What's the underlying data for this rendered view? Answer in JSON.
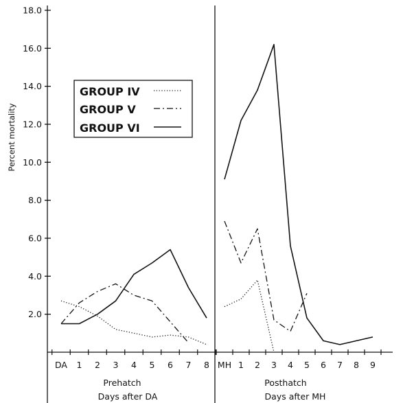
{
  "chart_data": {
    "type": "line",
    "y_axis": {
      "label": "Percent mortality",
      "range": [
        0,
        18
      ],
      "ticks": [
        2,
        4,
        6,
        8,
        10,
        12,
        14,
        16,
        18
      ],
      "tick_labels": [
        "2.0",
        "4.0",
        "6.0",
        "8.0",
        "10.0",
        "12.0",
        "14.0",
        "16.0",
        "18.0"
      ]
    },
    "legend": {
      "placement": "upper-left",
      "entries": [
        {
          "label": "GROUP IV",
          "style": "dotted"
        },
        {
          "label": "GROUP V",
          "style": "dash-dot"
        },
        {
          "label": "GROUP VI",
          "style": "solid"
        }
      ]
    },
    "panels": [
      {
        "name": "prehatch",
        "title": "Prehatch",
        "xlabel": "Days after DA",
        "categories": [
          "DA",
          "1",
          "2",
          "3",
          "4",
          "5",
          "6",
          "7",
          "8"
        ],
        "series": [
          {
            "name": "GROUP IV",
            "style": "dotted",
            "values": [
              2.7,
              2.4,
              1.9,
              1.2,
              1.0,
              0.8,
              0.9,
              0.8,
              0.4
            ]
          },
          {
            "name": "GROUP V",
            "style": "dash-dot",
            "values": [
              1.5,
              2.6,
              3.2,
              3.6,
              3.0,
              2.7,
              1.6,
              0.5,
              null
            ]
          },
          {
            "name": "GROUP VI",
            "style": "solid",
            "values": [
              1.5,
              1.5,
              2.0,
              2.7,
              4.1,
              4.7,
              5.4,
              3.4,
              1.8
            ]
          }
        ]
      },
      {
        "name": "posthatch",
        "title": "Posthatch",
        "xlabel": "Days after MH",
        "categories": [
          "MH",
          "1",
          "2",
          "3",
          "4",
          "5",
          "6",
          "7",
          "8",
          "9"
        ],
        "series": [
          {
            "name": "GROUP IV",
            "style": "dotted",
            "values": [
              2.4,
              2.8,
              3.8,
              0.0,
              null,
              null,
              null,
              null,
              null,
              null
            ]
          },
          {
            "name": "GROUP V",
            "style": "dash-dot",
            "values": [
              6.9,
              4.7,
              6.5,
              1.7,
              1.1,
              3.1,
              null,
              null,
              null,
              null
            ]
          },
          {
            "name": "GROUP VI",
            "style": "solid",
            "values": [
              9.1,
              12.2,
              13.8,
              16.2,
              5.6,
              1.8,
              0.6,
              0.4,
              0.6,
              0.8
            ]
          }
        ]
      }
    ],
    "grid": false
  }
}
